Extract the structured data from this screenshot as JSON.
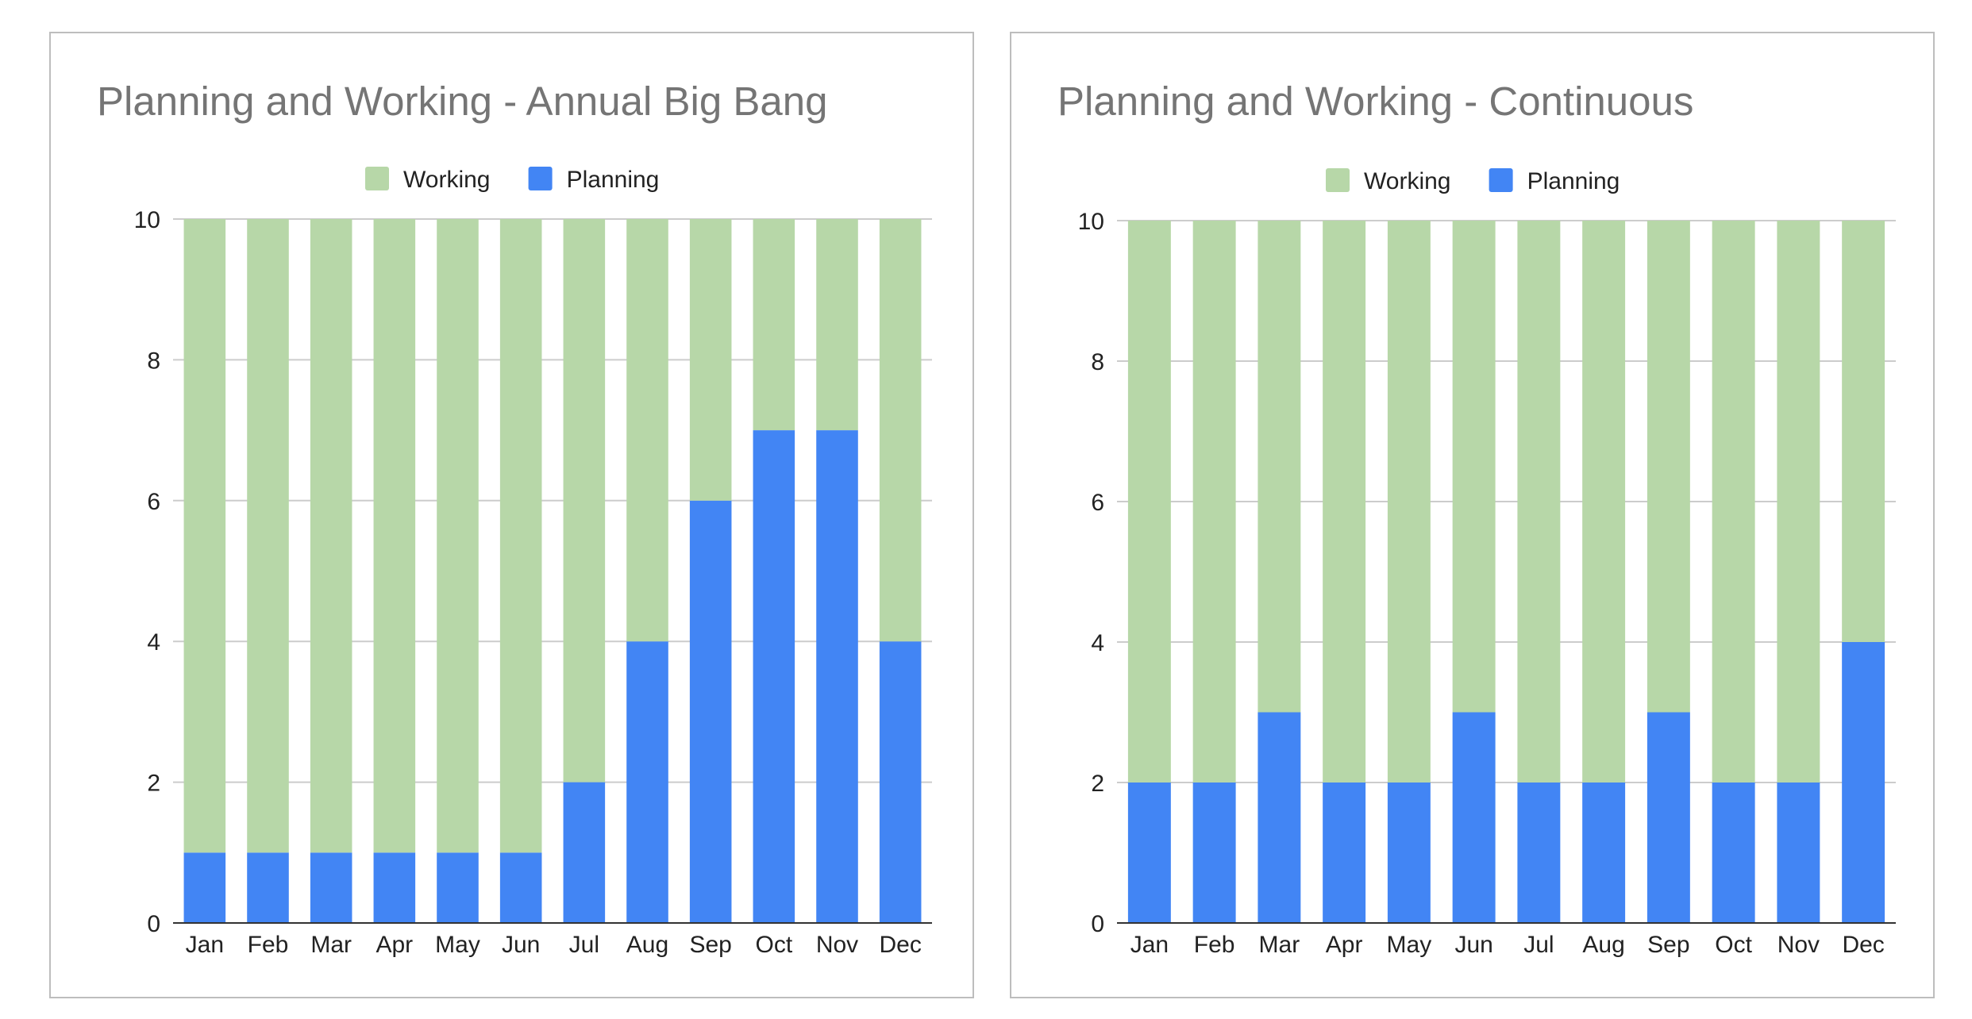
{
  "chart_data": [
    {
      "type": "bar",
      "stacked": true,
      "title": "Planning and Working - Annual Big Bang",
      "xlabel": "",
      "ylabel": "",
      "categories": [
        "Jan",
        "Feb",
        "Mar",
        "Apr",
        "May",
        "Jun",
        "Jul",
        "Aug",
        "Sep",
        "Oct",
        "Nov",
        "Dec"
      ],
      "series": [
        {
          "name": "Planning",
          "color": "#4285f4",
          "values": [
            1,
            1,
            1,
            1,
            1,
            1,
            2,
            4,
            6,
            7,
            7,
            4
          ]
        },
        {
          "name": "Working",
          "color": "#b7d7a8",
          "values": [
            9,
            9,
            9,
            9,
            9,
            9,
            8,
            6,
            4,
            3,
            3,
            6
          ]
        }
      ],
      "legend_order": [
        "Working",
        "Planning"
      ],
      "legend_position": "top",
      "ylim": [
        0,
        10
      ],
      "yticks": [
        0,
        2,
        4,
        6,
        8,
        10
      ],
      "grid": true
    },
    {
      "type": "bar",
      "stacked": true,
      "title": "Planning and Working - Continuous",
      "xlabel": "",
      "ylabel": "",
      "categories": [
        "Jan",
        "Feb",
        "Mar",
        "Apr",
        "May",
        "Jun",
        "Jul",
        "Aug",
        "Sep",
        "Oct",
        "Nov",
        "Dec"
      ],
      "series": [
        {
          "name": "Planning",
          "color": "#4285f4",
          "values": [
            2,
            2,
            3,
            2,
            2,
            3,
            2,
            2,
            3,
            2,
            2,
            4
          ]
        },
        {
          "name": "Working",
          "color": "#b7d7a8",
          "values": [
            8,
            8,
            7,
            8,
            8,
            7,
            8,
            8,
            7,
            8,
            8,
            6
          ]
        }
      ],
      "legend_order": [
        "Working",
        "Planning"
      ],
      "legend_position": "top",
      "ylim": [
        0,
        10
      ],
      "yticks": [
        0,
        2,
        4,
        6,
        8,
        10
      ],
      "grid": true
    }
  ]
}
